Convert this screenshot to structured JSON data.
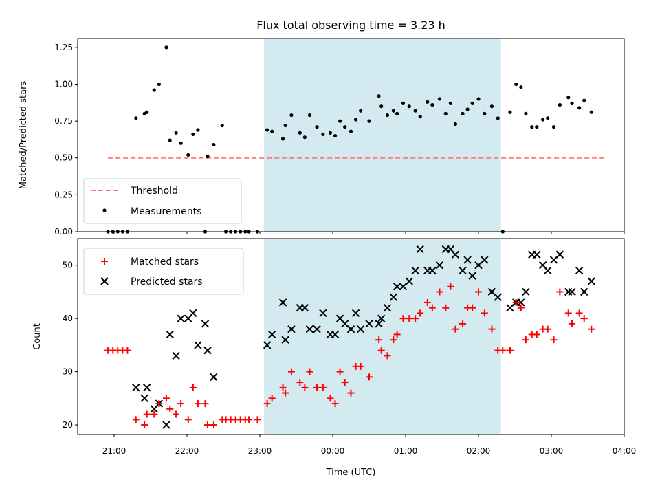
{
  "chart_data": [
    {
      "type": "scatter",
      "title": "Flux total observing time = 3.23 h",
      "xlabel": "",
      "ylabel": "Matched/Predicted stars",
      "xlim": [
        "20:30",
        "04:00"
      ],
      "ylim": [
        0,
        1.31
      ],
      "yticks": [
        "0.00",
        "0.25",
        "0.50",
        "0.75",
        "1.00",
        "1.25"
      ],
      "shaded_region": [
        "23:04",
        "02:18"
      ],
      "shade_color": "#d4eaf1",
      "grid": false,
      "legend_position": "lower-left",
      "series": [
        {
          "name": "Threshold",
          "kind": "dashed-line",
          "color": "#ff7b7b",
          "x": [
            "20:55",
            "03:44"
          ],
          "y": [
            0.5,
            0.5
          ]
        },
        {
          "name": "Measurements",
          "kind": "dot",
          "color": "#000000",
          "points": [
            [
              "20:55",
              0.0
            ],
            [
              "20:59",
              0.0
            ],
            [
              "21:03",
              0.0
            ],
            [
              "21:07",
              0.0
            ],
            [
              "21:11",
              0.0
            ],
            [
              "21:18",
              0.77
            ],
            [
              "21:25",
              0.8
            ],
            [
              "21:27",
              0.81
            ],
            [
              "21:33",
              0.96
            ],
            [
              "21:37",
              1.0
            ],
            [
              "21:43",
              1.25
            ],
            [
              "21:46",
              0.62
            ],
            [
              "21:51",
              0.67
            ],
            [
              "21:55",
              0.6
            ],
            [
              "22:01",
              0.52
            ],
            [
              "22:05",
              0.66
            ],
            [
              "22:09",
              0.69
            ],
            [
              "22:15",
              0.0
            ],
            [
              "22:17",
              0.51
            ],
            [
              "22:22",
              0.59
            ],
            [
              "22:29",
              0.72
            ],
            [
              "22:32",
              0.0
            ],
            [
              "22:36",
              0.0
            ],
            [
              "22:40",
              0.0
            ],
            [
              "22:44",
              0.0
            ],
            [
              "22:48",
              0.0
            ],
            [
              "22:51",
              0.0
            ],
            [
              "22:58",
              0.0
            ],
            [
              "23:06",
              0.69
            ],
            [
              "23:10",
              0.68
            ],
            [
              "23:19",
              0.63
            ],
            [
              "23:21",
              0.72
            ],
            [
              "23:26",
              0.79
            ],
            [
              "23:33",
              0.67
            ],
            [
              "23:37",
              0.64
            ],
            [
              "23:41",
              0.79
            ],
            [
              "23:47",
              0.71
            ],
            [
              "23:52",
              0.66
            ],
            [
              "23:58",
              0.67
            ],
            [
              "00:02",
              0.65
            ],
            [
              "00:06",
              0.75
            ],
            [
              "00:10",
              0.71
            ],
            [
              "00:15",
              0.68
            ],
            [
              "00:19",
              0.76
            ],
            [
              "00:23",
              0.82
            ],
            [
              "00:30",
              0.75
            ],
            [
              "00:38",
              0.92
            ],
            [
              "00:40",
              0.85
            ],
            [
              "00:45",
              0.79
            ],
            [
              "00:50",
              0.82
            ],
            [
              "00:53",
              0.8
            ],
            [
              "00:58",
              0.87
            ],
            [
              "01:03",
              0.85
            ],
            [
              "01:08",
              0.82
            ],
            [
              "01:12",
              0.78
            ],
            [
              "01:18",
              0.88
            ],
            [
              "01:22",
              0.86
            ],
            [
              "01:28",
              0.9
            ],
            [
              "01:33",
              0.8
            ],
            [
              "01:37",
              0.87
            ],
            [
              "01:41",
              0.73
            ],
            [
              "01:47",
              0.8
            ],
            [
              "01:51",
              0.83
            ],
            [
              "01:55",
              0.87
            ],
            [
              "02:00",
              0.9
            ],
            [
              "02:05",
              0.8
            ],
            [
              "02:11",
              0.85
            ],
            [
              "02:16",
              0.77
            ],
            [
              "02:20",
              0.0
            ],
            [
              "02:26",
              0.81
            ],
            [
              "02:31",
              1.0
            ],
            [
              "02:35",
              0.98
            ],
            [
              "02:39",
              0.8
            ],
            [
              "02:44",
              0.71
            ],
            [
              "02:48",
              0.71
            ],
            [
              "02:53",
              0.76
            ],
            [
              "02:57",
              0.77
            ],
            [
              "03:02",
              0.71
            ],
            [
              "03:07",
              0.86
            ],
            [
              "03:14",
              0.91
            ],
            [
              "03:17",
              0.87
            ],
            [
              "03:23",
              0.84
            ],
            [
              "03:27",
              0.89
            ],
            [
              "03:33",
              0.81
            ]
          ]
        }
      ]
    },
    {
      "type": "scatter",
      "title": "",
      "xlabel": "Time (UTC)",
      "ylabel": "Count",
      "xlim": [
        "20:30",
        "04:00"
      ],
      "ylim": [
        18.2,
        55
      ],
      "yticks": [
        "20",
        "30",
        "40",
        "50"
      ],
      "xticks": [
        "21:00",
        "22:00",
        "23:00",
        "00:00",
        "01:00",
        "02:00",
        "03:00",
        "04:00"
      ],
      "shaded_region": [
        "23:04",
        "02:18"
      ],
      "shade_color": "#d4eaf1",
      "grid": false,
      "legend_position": "top-left",
      "series": [
        {
          "name": "Matched stars",
          "kind": "plus",
          "color": "#ff0000",
          "points": [
            [
              "20:55",
              34
            ],
            [
              "20:59",
              34
            ],
            [
              "21:03",
              34
            ],
            [
              "21:07",
              34
            ],
            [
              "21:11",
              34
            ],
            [
              "21:18",
              21
            ],
            [
              "21:25",
              20
            ],
            [
              "21:27",
              22
            ],
            [
              "21:33",
              22
            ],
            [
              "21:37",
              24
            ],
            [
              "21:43",
              25
            ],
            [
              "21:46",
              23
            ],
            [
              "21:51",
              22
            ],
            [
              "21:55",
              24
            ],
            [
              "22:01",
              21
            ],
            [
              "22:05",
              27
            ],
            [
              "22:09",
              24
            ],
            [
              "22:15",
              24
            ],
            [
              "22:17",
              20
            ],
            [
              "22:22",
              20
            ],
            [
              "22:29",
              21
            ],
            [
              "22:32",
              21
            ],
            [
              "22:36",
              21
            ],
            [
              "22:40",
              21
            ],
            [
              "22:44",
              21
            ],
            [
              "22:48",
              21
            ],
            [
              "22:51",
              21
            ],
            [
              "22:58",
              21
            ],
            [
              "23:06",
              24
            ],
            [
              "23:10",
              25
            ],
            [
              "23:19",
              27
            ],
            [
              "23:21",
              26
            ],
            [
              "23:26",
              30
            ],
            [
              "23:33",
              28
            ],
            [
              "23:37",
              27
            ],
            [
              "23:41",
              30
            ],
            [
              "23:47",
              27
            ],
            [
              "23:52",
              27
            ],
            [
              "23:58",
              25
            ],
            [
              "00:02",
              24
            ],
            [
              "00:06",
              30
            ],
            [
              "00:10",
              28
            ],
            [
              "00:15",
              26
            ],
            [
              "00:19",
              31
            ],
            [
              "00:23",
              31
            ],
            [
              "00:30",
              29
            ],
            [
              "00:38",
              36
            ],
            [
              "00:40",
              34
            ],
            [
              "00:45",
              33
            ],
            [
              "00:50",
              36
            ],
            [
              "00:53",
              37
            ],
            [
              "00:58",
              40
            ],
            [
              "01:03",
              40
            ],
            [
              "01:08",
              40
            ],
            [
              "01:12",
              41
            ],
            [
              "01:18",
              43
            ],
            [
              "01:22",
              42
            ],
            [
              "01:28",
              45
            ],
            [
              "01:33",
              42
            ],
            [
              "01:37",
              46
            ],
            [
              "01:41",
              38
            ],
            [
              "01:47",
              39
            ],
            [
              "01:51",
              42
            ],
            [
              "01:55",
              42
            ],
            [
              "02:00",
              45
            ],
            [
              "02:05",
              41
            ],
            [
              "02:11",
              38
            ],
            [
              "02:16",
              34
            ],
            [
              "02:20",
              34
            ],
            [
              "02:26",
              34
            ],
            [
              "02:31",
              43
            ],
            [
              "02:35",
              42
            ],
            [
              "02:39",
              36
            ],
            [
              "02:44",
              37
            ],
            [
              "02:48",
              37
            ],
            [
              "02:53",
              38
            ],
            [
              "02:57",
              38
            ],
            [
              "03:02",
              36
            ],
            [
              "03:07",
              45
            ],
            [
              "03:14",
              41
            ],
            [
              "03:17",
              39
            ],
            [
              "03:23",
              41
            ],
            [
              "03:27",
              40
            ],
            [
              "03:33",
              38
            ]
          ]
        },
        {
          "name": "Predicted stars",
          "kind": "x",
          "color": "#000000",
          "points": [
            [
              "21:18",
              27
            ],
            [
              "21:25",
              25
            ],
            [
              "21:27",
              27
            ],
            [
              "21:33",
              23
            ],
            [
              "21:37",
              24
            ],
            [
              "21:43",
              20
            ],
            [
              "21:46",
              37
            ],
            [
              "21:51",
              33
            ],
            [
              "21:55",
              40
            ],
            [
              "22:01",
              40
            ],
            [
              "22:05",
              41
            ],
            [
              "22:09",
              35
            ],
            [
              "22:15",
              39
            ],
            [
              "22:17",
              34
            ],
            [
              "22:22",
              29
            ],
            [
              "23:06",
              35
            ],
            [
              "23:10",
              37
            ],
            [
              "23:19",
              43
            ],
            [
              "23:21",
              36
            ],
            [
              "23:26",
              38
            ],
            [
              "23:33",
              42
            ],
            [
              "23:37",
              42
            ],
            [
              "23:41",
              38
            ],
            [
              "23:47",
              38
            ],
            [
              "23:52",
              41
            ],
            [
              "23:58",
              37
            ],
            [
              "00:02",
              37
            ],
            [
              "00:06",
              40
            ],
            [
              "00:10",
              39
            ],
            [
              "00:15",
              38
            ],
            [
              "00:19",
              41
            ],
            [
              "00:23",
              38
            ],
            [
              "00:30",
              39
            ],
            [
              "00:38",
              39
            ],
            [
              "00:40",
              40
            ],
            [
              "00:45",
              42
            ],
            [
              "00:50",
              44
            ],
            [
              "00:53",
              46
            ],
            [
              "00:58",
              46
            ],
            [
              "01:03",
              47
            ],
            [
              "01:08",
              49
            ],
            [
              "01:12",
              53
            ],
            [
              "01:18",
              49
            ],
            [
              "01:22",
              49
            ],
            [
              "01:28",
              50
            ],
            [
              "01:33",
              53
            ],
            [
              "01:37",
              53
            ],
            [
              "01:41",
              52
            ],
            [
              "01:47",
              49
            ],
            [
              "01:51",
              51
            ],
            [
              "01:55",
              48
            ],
            [
              "02:00",
              50
            ],
            [
              "02:05",
              51
            ],
            [
              "02:11",
              45
            ],
            [
              "02:16",
              44
            ],
            [
              "02:26",
              42
            ],
            [
              "02:31",
              43
            ],
            [
              "02:35",
              43
            ],
            [
              "02:39",
              45
            ],
            [
              "02:44",
              52
            ],
            [
              "02:48",
              52
            ],
            [
              "02:53",
              50
            ],
            [
              "02:57",
              49
            ],
            [
              "03:02",
              51
            ],
            [
              "03:07",
              52
            ],
            [
              "03:14",
              45
            ],
            [
              "03:17",
              45
            ],
            [
              "03:23",
              49
            ],
            [
              "03:27",
              45
            ],
            [
              "03:33",
              47
            ]
          ]
        }
      ]
    }
  ]
}
